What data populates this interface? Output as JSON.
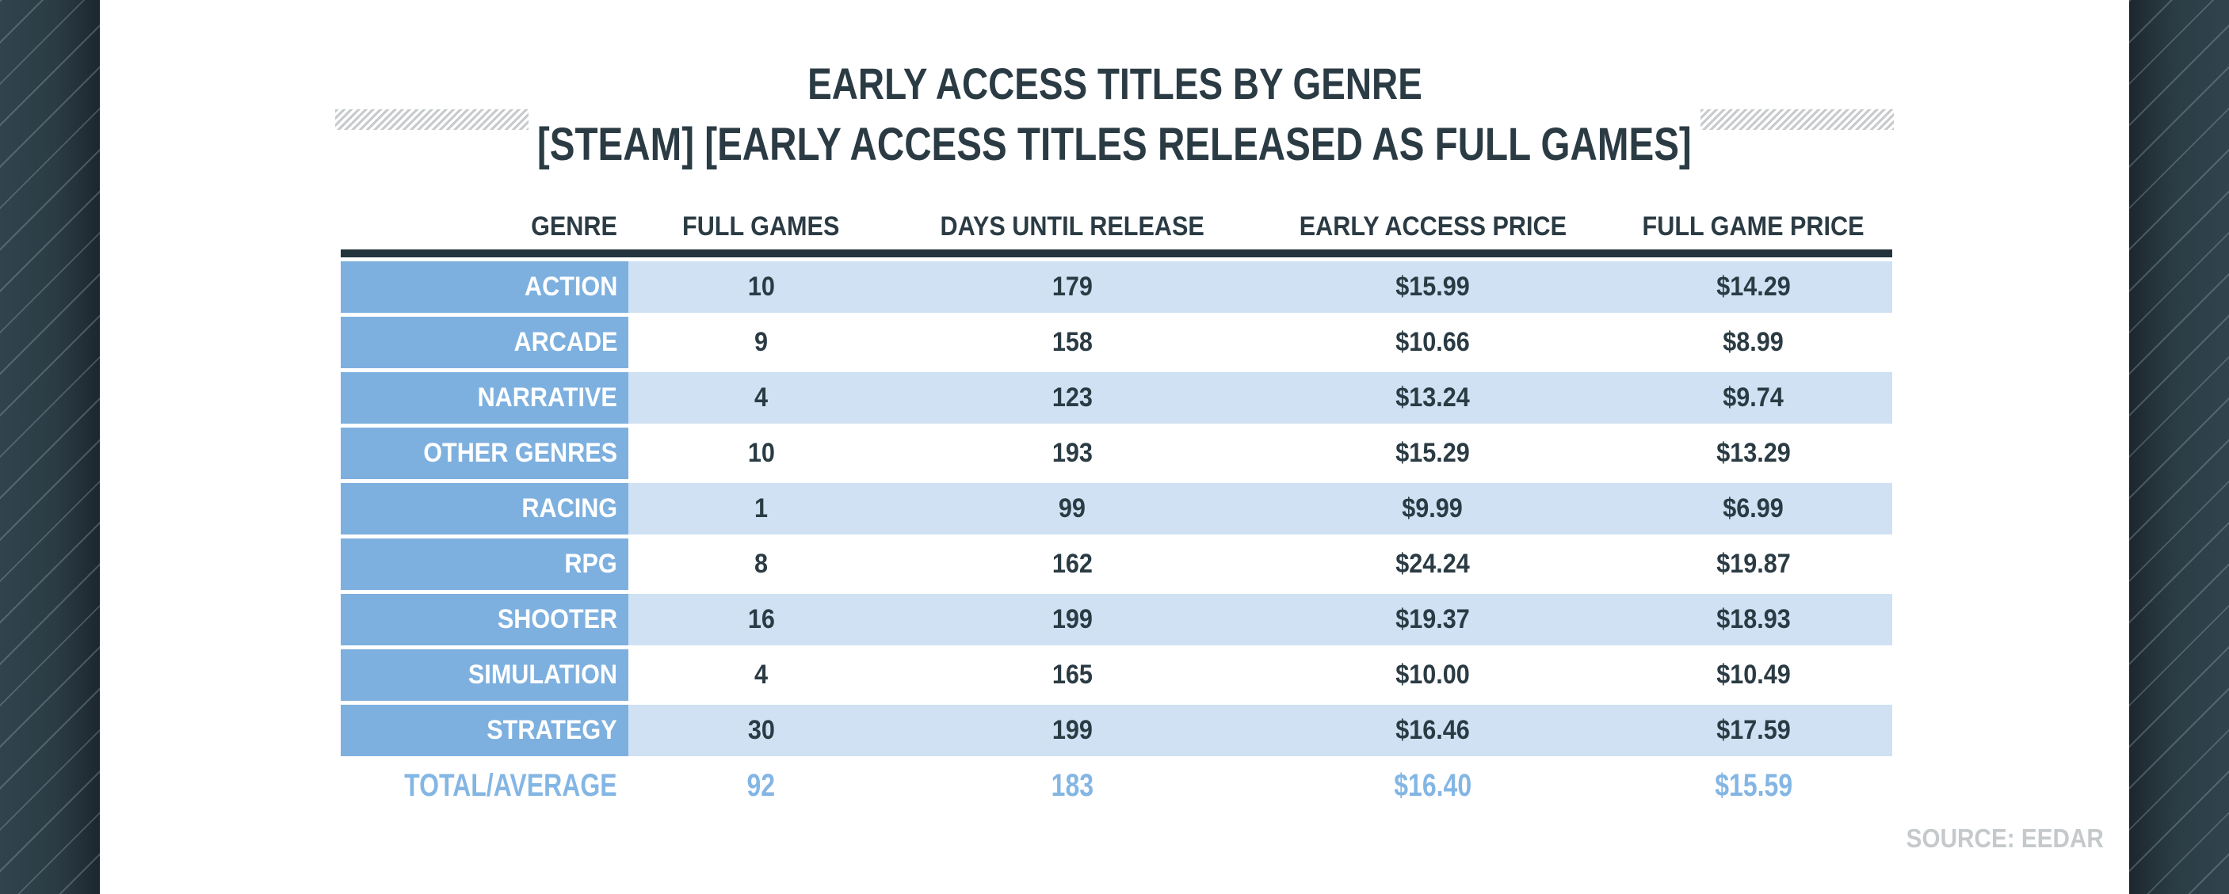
{
  "header": {
    "title": "EARLY ACCESS TITLES BY GENRE",
    "subtitle": "[STEAM] [EARLY ACCESS TITLES RELEASED AS FULL GAMES]"
  },
  "table": {
    "columns": [
      "GENRE",
      "FULL GAMES",
      "DAYS UNTIL RELEASE",
      "EARLY ACCESS PRICE",
      "FULL GAME PRICE"
    ],
    "rows": [
      {
        "genre": "ACTION",
        "full_games": "10",
        "days_until_release": "179",
        "early_access_price": "$15.99",
        "full_game_price": "$14.29"
      },
      {
        "genre": "ARCADE",
        "full_games": "9",
        "days_until_release": "158",
        "early_access_price": "$10.66",
        "full_game_price": "$8.99"
      },
      {
        "genre": "NARRATIVE",
        "full_games": "4",
        "days_until_release": "123",
        "early_access_price": "$13.24",
        "full_game_price": "$9.74"
      },
      {
        "genre": "OTHER GENRES",
        "full_games": "10",
        "days_until_release": "193",
        "early_access_price": "$15.29",
        "full_game_price": "$13.29"
      },
      {
        "genre": "RACING",
        "full_games": "1",
        "days_until_release": "99",
        "early_access_price": "$9.99",
        "full_game_price": "$6.99"
      },
      {
        "genre": "RPG",
        "full_games": "8",
        "days_until_release": "162",
        "early_access_price": "$24.24",
        "full_game_price": "$19.87"
      },
      {
        "genre": "SHOOTER",
        "full_games": "16",
        "days_until_release": "199",
        "early_access_price": "$19.37",
        "full_game_price": "$18.93"
      },
      {
        "genre": "SIMULATION",
        "full_games": "4",
        "days_until_release": "165",
        "early_access_price": "$10.00",
        "full_game_price": "$10.49"
      },
      {
        "genre": "STRATEGY",
        "full_games": "30",
        "days_until_release": "199",
        "early_access_price": "$16.46",
        "full_game_price": "$17.59"
      }
    ],
    "total_row": {
      "genre": "TOTAL/AVERAGE",
      "full_games": "92",
      "days_until_release": "183",
      "early_access_price": "$16.40",
      "full_game_price": "$15.59"
    }
  },
  "footer": {
    "source": "SOURCE: EEDAR"
  },
  "colors": {
    "navy_text": "#2b3b44",
    "genre_cell_blue": "#7db0df",
    "row_light_blue": "#cfe1f3",
    "total_text_blue": "#84b6e4",
    "header_rule": "#23343c",
    "source_gray": "#c5c9cb",
    "band_dark_teal": "#2b3c45",
    "hatch_gray": "#c7cbce"
  },
  "chart_data": {
    "type": "table",
    "title": "EARLY ACCESS TITLES BY GENRE",
    "subtitle": "[STEAM] [EARLY ACCESS TITLES RELEASED AS FULL GAMES]",
    "columns": [
      "GENRE",
      "FULL GAMES",
      "DAYS UNTIL RELEASE",
      "EARLY ACCESS PRICE",
      "FULL GAME PRICE"
    ],
    "rows": [
      [
        "ACTION",
        10,
        179,
        15.99,
        14.29
      ],
      [
        "ARCADE",
        9,
        158,
        10.66,
        8.99
      ],
      [
        "NARRATIVE",
        4,
        123,
        13.24,
        9.74
      ],
      [
        "OTHER GENRES",
        10,
        193,
        15.29,
        13.29
      ],
      [
        "RACING",
        1,
        99,
        9.99,
        6.99
      ],
      [
        "RPG",
        8,
        162,
        24.24,
        19.87
      ],
      [
        "SHOOTER",
        16,
        199,
        19.37,
        18.93
      ],
      [
        "SIMULATION",
        4,
        165,
        10.0,
        10.49
      ],
      [
        "STRATEGY",
        30,
        199,
        16.46,
        17.59
      ]
    ],
    "total_row": [
      "TOTAL/AVERAGE",
      92,
      183,
      16.4,
      15.59
    ],
    "source": "SOURCE: EEDAR"
  }
}
